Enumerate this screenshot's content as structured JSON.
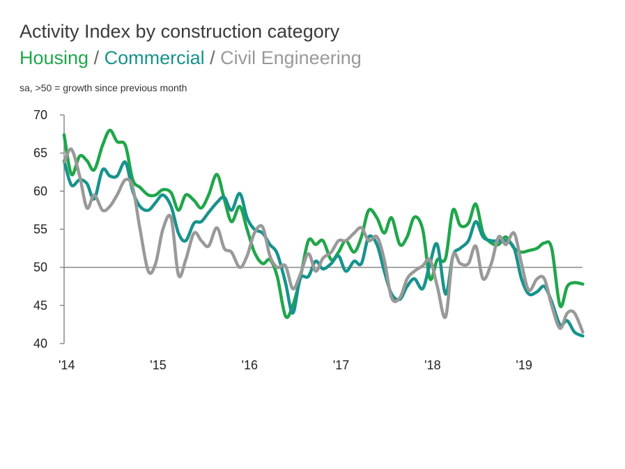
{
  "header": {
    "title": "Activity Index by construction category",
    "subtitle_parts": [
      "Housing",
      " / ",
      "Commercial",
      " / ",
      "Civil Engineering"
    ],
    "note": "sa, >50 = growth since previous month"
  },
  "colors": {
    "housing": "#1fa64a",
    "commercial": "#17938c",
    "civil": "#999999",
    "separator": "#666666",
    "reference_line": "#888888",
    "axis": "#888888"
  },
  "chart_data": {
    "type": "line",
    "title": "Activity Index by construction category",
    "ylim": [
      40,
      70
    ],
    "yticks": [
      40,
      45,
      50,
      55,
      60,
      65,
      70
    ],
    "xlim": [
      2014.0,
      2019.667
    ],
    "xticks": [
      {
        "label": "'14",
        "value": 2014
      },
      {
        "label": "'15",
        "value": 2015
      },
      {
        "label": "'16",
        "value": 2016
      },
      {
        "label": "'17",
        "value": 2017
      },
      {
        "label": "'18",
        "value": 2018
      },
      {
        "label": "'19",
        "value": 2019
      }
    ],
    "reference_line": 50,
    "grid": false,
    "series": [
      {
        "name": "Housing",
        "color": "#1fa64a",
        "points": [
          [
            2014.0,
            67.4
          ],
          [
            2014.08,
            62.2
          ],
          [
            2014.17,
            64.6
          ],
          [
            2014.25,
            64.0
          ],
          [
            2014.33,
            62.8
          ],
          [
            2014.42,
            66.0
          ],
          [
            2014.5,
            68.0
          ],
          [
            2014.58,
            66.5
          ],
          [
            2014.67,
            66.0
          ],
          [
            2014.75,
            61.5
          ],
          [
            2014.83,
            60.5
          ],
          [
            2014.92,
            59.5
          ],
          [
            2015.0,
            59.5
          ],
          [
            2015.08,
            60.2
          ],
          [
            2015.17,
            59.8
          ],
          [
            2015.25,
            57.5
          ],
          [
            2015.33,
            59.5
          ],
          [
            2015.42,
            58.8
          ],
          [
            2015.5,
            57.8
          ],
          [
            2015.58,
            59.5
          ],
          [
            2015.67,
            62.2
          ],
          [
            2015.75,
            59.0
          ],
          [
            2015.83,
            56.0
          ],
          [
            2015.92,
            58.0
          ],
          [
            2016.0,
            55.0
          ],
          [
            2016.08,
            52.0
          ],
          [
            2016.17,
            50.5
          ],
          [
            2016.25,
            51.0
          ],
          [
            2016.33,
            48.8
          ],
          [
            2016.42,
            43.6
          ],
          [
            2016.5,
            45.0
          ],
          [
            2016.58,
            48.5
          ],
          [
            2016.67,
            53.5
          ],
          [
            2016.75,
            53.0
          ],
          [
            2016.83,
            53.5
          ],
          [
            2016.92,
            51.0
          ],
          [
            2017.0,
            52.0
          ],
          [
            2017.08,
            53.5
          ],
          [
            2017.17,
            52.0
          ],
          [
            2017.25,
            54.0
          ],
          [
            2017.33,
            57.5
          ],
          [
            2017.42,
            56.5
          ],
          [
            2017.5,
            54.5
          ],
          [
            2017.58,
            56.5
          ],
          [
            2017.67,
            53.0
          ],
          [
            2017.75,
            54.0
          ],
          [
            2017.83,
            56.6
          ],
          [
            2017.92,
            55.0
          ],
          [
            2018.0,
            48.5
          ],
          [
            2018.08,
            51.0
          ],
          [
            2018.17,
            51.2
          ],
          [
            2018.25,
            57.5
          ],
          [
            2018.33,
            55.5
          ],
          [
            2018.42,
            55.8
          ],
          [
            2018.5,
            58.3
          ],
          [
            2018.58,
            54.5
          ],
          [
            2018.67,
            53.2
          ],
          [
            2018.75,
            53.0
          ],
          [
            2018.83,
            54.0
          ],
          [
            2018.92,
            52.5
          ],
          [
            2019.0,
            52.0
          ],
          [
            2019.08,
            52.2
          ],
          [
            2019.17,
            52.5
          ],
          [
            2019.25,
            53.2
          ],
          [
            2019.33,
            52.5
          ],
          [
            2019.42,
            45.0
          ],
          [
            2019.5,
            47.5
          ],
          [
            2019.58,
            48.0
          ],
          [
            2019.67,
            47.8
          ]
        ]
      },
      {
        "name": "Commercial",
        "color": "#17938c",
        "points": [
          [
            2014.0,
            64.0
          ],
          [
            2014.08,
            60.8
          ],
          [
            2014.17,
            61.5
          ],
          [
            2014.25,
            61.0
          ],
          [
            2014.33,
            59.0
          ],
          [
            2014.42,
            62.8
          ],
          [
            2014.5,
            62.0
          ],
          [
            2014.58,
            62.0
          ],
          [
            2014.67,
            63.8
          ],
          [
            2014.75,
            60.0
          ],
          [
            2014.83,
            58.0
          ],
          [
            2014.92,
            57.5
          ],
          [
            2015.0,
            58.5
          ],
          [
            2015.08,
            59.5
          ],
          [
            2015.17,
            58.0
          ],
          [
            2015.25,
            54.5
          ],
          [
            2015.33,
            53.5
          ],
          [
            2015.42,
            55.8
          ],
          [
            2015.5,
            56.0
          ],
          [
            2015.58,
            57.2
          ],
          [
            2015.67,
            58.5
          ],
          [
            2015.75,
            59.2
          ],
          [
            2015.83,
            57.5
          ],
          [
            2015.92,
            59.7
          ],
          [
            2016.0,
            56.5
          ],
          [
            2016.08,
            55.0
          ],
          [
            2016.17,
            54.5
          ],
          [
            2016.25,
            53.0
          ],
          [
            2016.33,
            51.8
          ],
          [
            2016.42,
            48.0
          ],
          [
            2016.5,
            44.0
          ],
          [
            2016.58,
            48.5
          ],
          [
            2016.67,
            48.8
          ],
          [
            2016.75,
            50.8
          ],
          [
            2016.83,
            49.8
          ],
          [
            2016.92,
            50.5
          ],
          [
            2017.0,
            51.5
          ],
          [
            2017.08,
            49.5
          ],
          [
            2017.17,
            50.8
          ],
          [
            2017.25,
            50.5
          ],
          [
            2017.33,
            54.0
          ],
          [
            2017.42,
            53.0
          ],
          [
            2017.5,
            49.5
          ],
          [
            2017.58,
            46.5
          ],
          [
            2017.67,
            45.8
          ],
          [
            2017.75,
            47.5
          ],
          [
            2017.83,
            48.5
          ],
          [
            2017.92,
            47.2
          ],
          [
            2018.0,
            50.5
          ],
          [
            2018.08,
            53.0
          ],
          [
            2018.17,
            46.5
          ],
          [
            2018.25,
            51.5
          ],
          [
            2018.33,
            52.5
          ],
          [
            2018.42,
            53.5
          ],
          [
            2018.5,
            56.0
          ],
          [
            2018.58,
            54.0
          ],
          [
            2018.67,
            53.5
          ],
          [
            2018.75,
            53.5
          ],
          [
            2018.83,
            53.5
          ],
          [
            2018.92,
            52.5
          ],
          [
            2019.0,
            48.5
          ],
          [
            2019.08,
            46.5
          ],
          [
            2019.17,
            46.8
          ],
          [
            2019.25,
            47.5
          ],
          [
            2019.33,
            45.5
          ],
          [
            2019.42,
            42.5
          ],
          [
            2019.5,
            43.0
          ],
          [
            2019.58,
            41.5
          ],
          [
            2019.67,
            41.0
          ]
        ]
      },
      {
        "name": "Civil Engineering",
        "color": "#999999",
        "points": [
          [
            2014.0,
            63.8
          ],
          [
            2014.08,
            65.5
          ],
          [
            2014.17,
            62.0
          ],
          [
            2014.25,
            57.8
          ],
          [
            2014.33,
            59.5
          ],
          [
            2014.42,
            57.5
          ],
          [
            2014.5,
            58.0
          ],
          [
            2014.58,
            59.5
          ],
          [
            2014.67,
            61.5
          ],
          [
            2014.75,
            60.5
          ],
          [
            2014.83,
            55.0
          ],
          [
            2014.92,
            49.5
          ],
          [
            2015.0,
            50.5
          ],
          [
            2015.08,
            55.0
          ],
          [
            2015.17,
            56.5
          ],
          [
            2015.25,
            49.0
          ],
          [
            2015.33,
            51.0
          ],
          [
            2015.42,
            54.5
          ],
          [
            2015.5,
            53.5
          ],
          [
            2015.58,
            52.8
          ],
          [
            2015.67,
            55.2
          ],
          [
            2015.75,
            52.5
          ],
          [
            2015.83,
            52.0
          ],
          [
            2015.92,
            50.0
          ],
          [
            2016.0,
            51.5
          ],
          [
            2016.08,
            54.5
          ],
          [
            2016.17,
            55.3
          ],
          [
            2016.25,
            51.5
          ],
          [
            2016.33,
            50.0
          ],
          [
            2016.42,
            50.2
          ],
          [
            2016.5,
            47.2
          ],
          [
            2016.58,
            49.0
          ],
          [
            2016.67,
            51.8
          ],
          [
            2016.75,
            49.5
          ],
          [
            2016.83,
            51.2
          ],
          [
            2016.92,
            52.0
          ],
          [
            2017.0,
            53.5
          ],
          [
            2017.08,
            53.5
          ],
          [
            2017.17,
            54.5
          ],
          [
            2017.25,
            55.2
          ],
          [
            2017.33,
            53.5
          ],
          [
            2017.42,
            54.0
          ],
          [
            2017.5,
            51.0
          ],
          [
            2017.58,
            46.0
          ],
          [
            2017.67,
            46.0
          ],
          [
            2017.75,
            48.5
          ],
          [
            2017.83,
            49.5
          ],
          [
            2017.92,
            50.2
          ],
          [
            2018.0,
            51.0
          ],
          [
            2018.08,
            47.5
          ],
          [
            2018.17,
            43.5
          ],
          [
            2018.25,
            51.5
          ],
          [
            2018.33,
            50.5
          ],
          [
            2018.42,
            50.5
          ],
          [
            2018.5,
            52.8
          ],
          [
            2018.58,
            48.5
          ],
          [
            2018.67,
            50.5
          ],
          [
            2018.75,
            54.0
          ],
          [
            2018.83,
            53.0
          ],
          [
            2018.92,
            54.5
          ],
          [
            2019.0,
            50.5
          ],
          [
            2019.08,
            47.0
          ],
          [
            2019.17,
            48.5
          ],
          [
            2019.25,
            48.5
          ],
          [
            2019.33,
            45.0
          ],
          [
            2019.42,
            42.0
          ],
          [
            2019.5,
            44.0
          ],
          [
            2019.58,
            44.0
          ],
          [
            2019.67,
            41.5
          ]
        ]
      }
    ]
  }
}
